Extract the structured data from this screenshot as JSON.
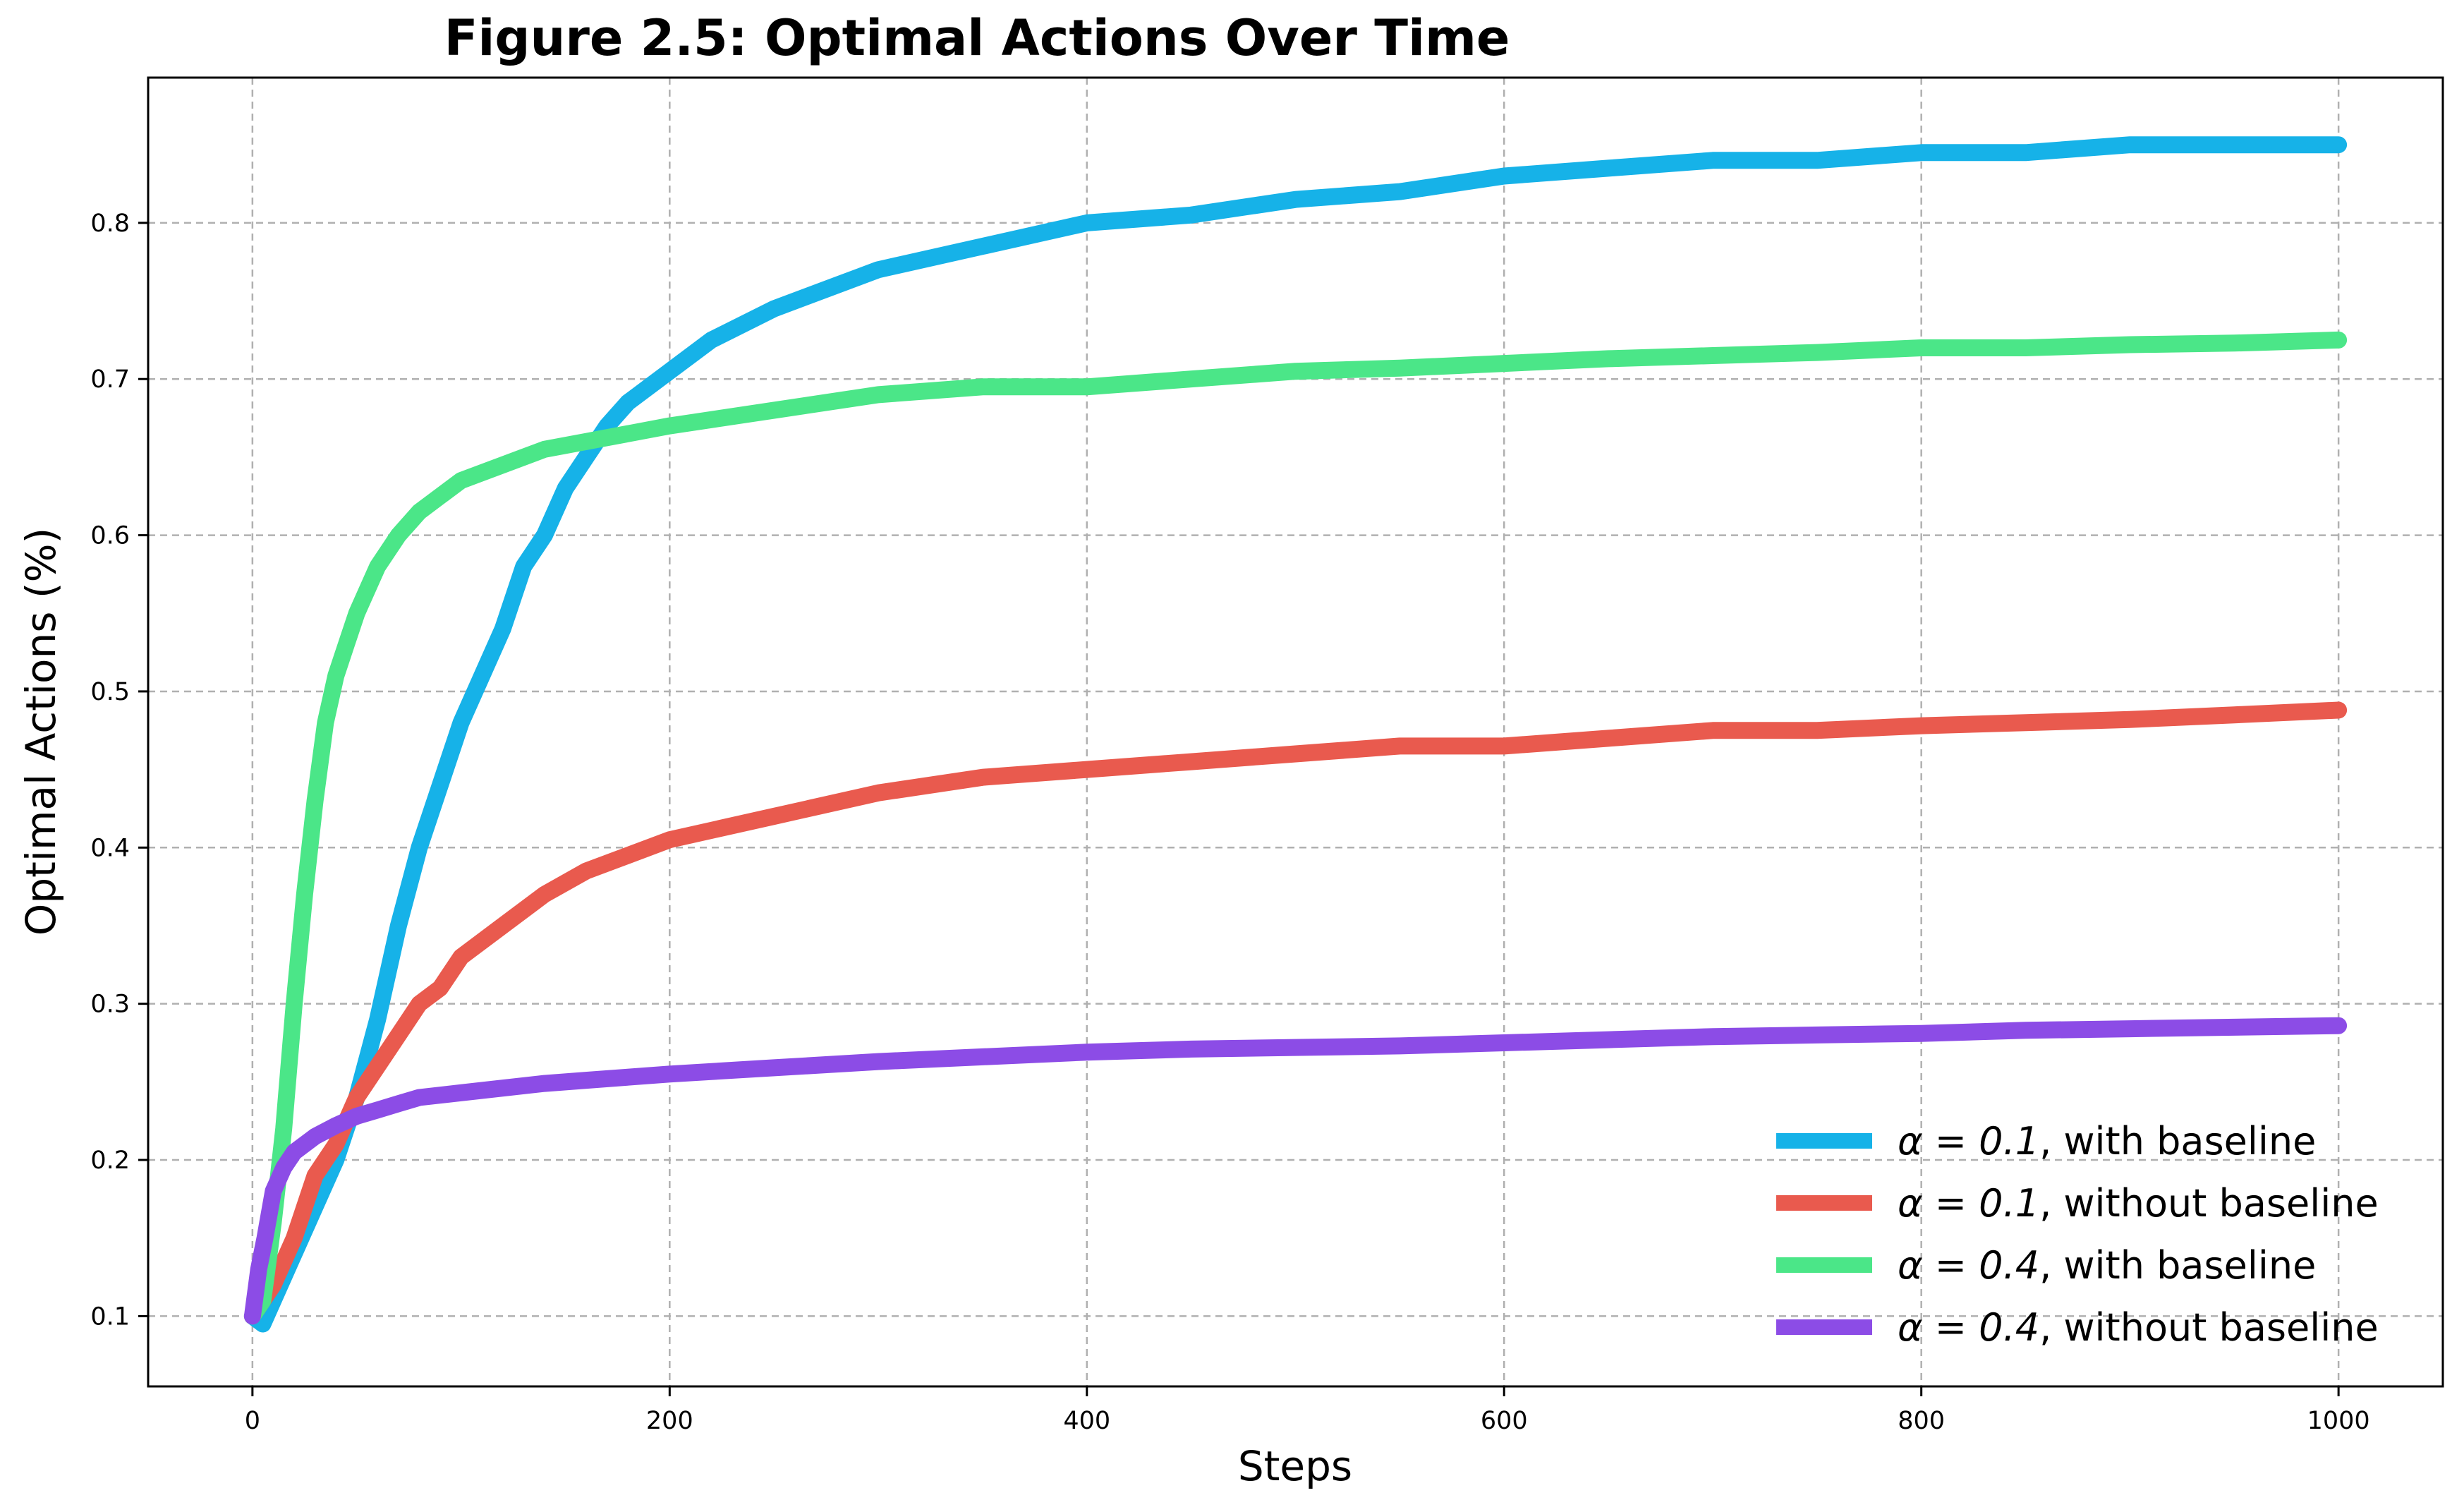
{
  "chart_data": {
    "type": "line",
    "title": "Figure 2.5: Optimal Actions Over Time",
    "xlabel": "Steps",
    "ylabel": "Optimal Actions (%)",
    "xlim": [
      -50,
      1050
    ],
    "ylim": [
      0.055,
      0.893
    ],
    "x_ticks": [
      0,
      200,
      400,
      600,
      800,
      1000
    ],
    "y_ticks": [
      0.1,
      0.2,
      0.3,
      0.4,
      0.5,
      0.6,
      0.7,
      0.8
    ],
    "grid": true,
    "legend_position": "lower-right",
    "series": [
      {
        "name": "α = 0.1, with baseline",
        "legend_prefix": "α = 0.1",
        "legend_suffix": ", with baseline",
        "color": "#16b2e8",
        "x": [
          0,
          5,
          10,
          20,
          30,
          40,
          50,
          60,
          70,
          80,
          90,
          100,
          110,
          120,
          130,
          140,
          150,
          160,
          170,
          180,
          200,
          220,
          250,
          280,
          300,
          350,
          400,
          450,
          500,
          550,
          600,
          650,
          700,
          750,
          800,
          850,
          900,
          950,
          1000
        ],
        "y": [
          0.1,
          0.095,
          0.11,
          0.14,
          0.17,
          0.2,
          0.24,
          0.29,
          0.35,
          0.4,
          0.44,
          0.48,
          0.51,
          0.54,
          0.58,
          0.6,
          0.63,
          0.65,
          0.67,
          0.685,
          0.705,
          0.725,
          0.745,
          0.76,
          0.77,
          0.785,
          0.8,
          0.805,
          0.815,
          0.82,
          0.83,
          0.835,
          0.84,
          0.84,
          0.845,
          0.845,
          0.85,
          0.85,
          0.85
        ]
      },
      {
        "name": "α = 0.1, without baseline",
        "legend_prefix": "α = 0.1",
        "legend_suffix": ", without baseline",
        "color": "#e95a4e",
        "x": [
          0,
          10,
          20,
          30,
          40,
          50,
          60,
          70,
          80,
          90,
          100,
          120,
          140,
          160,
          180,
          200,
          250,
          300,
          350,
          400,
          450,
          500,
          550,
          600,
          650,
          700,
          750,
          800,
          850,
          900,
          950,
          1000
        ],
        "y": [
          0.1,
          0.12,
          0.15,
          0.19,
          0.21,
          0.24,
          0.26,
          0.28,
          0.3,
          0.31,
          0.33,
          0.35,
          0.37,
          0.385,
          0.395,
          0.405,
          0.42,
          0.435,
          0.445,
          0.45,
          0.455,
          0.46,
          0.465,
          0.465,
          0.47,
          0.475,
          0.475,
          0.478,
          0.48,
          0.482,
          0.485,
          0.488
        ]
      },
      {
        "name": "α = 0.4, with baseline",
        "legend_prefix": "α = 0.4",
        "legend_suffix": ", with baseline",
        "color": "#4be688",
        "x": [
          0,
          5,
          10,
          15,
          20,
          25,
          30,
          35,
          40,
          45,
          50,
          60,
          70,
          80,
          90,
          100,
          120,
          140,
          160,
          180,
          200,
          250,
          300,
          350,
          400,
          450,
          500,
          550,
          600,
          650,
          700,
          750,
          800,
          850,
          900,
          950,
          1000
        ],
        "y": [
          0.1,
          0.11,
          0.16,
          0.22,
          0.3,
          0.37,
          0.43,
          0.48,
          0.51,
          0.53,
          0.55,
          0.58,
          0.6,
          0.615,
          0.625,
          0.635,
          0.645,
          0.655,
          0.66,
          0.665,
          0.67,
          0.68,
          0.69,
          0.695,
          0.695,
          0.7,
          0.705,
          0.707,
          0.71,
          0.713,
          0.715,
          0.717,
          0.72,
          0.72,
          0.722,
          0.723,
          0.725
        ]
      },
      {
        "name": "α = 0.4, without baseline",
        "legend_prefix": "α = 0.4",
        "legend_suffix": ", without baseline",
        "color": "#8c4ce6",
        "x": [
          0,
          3,
          6,
          10,
          15,
          20,
          30,
          40,
          50,
          60,
          70,
          80,
          100,
          120,
          140,
          160,
          180,
          200,
          250,
          300,
          350,
          400,
          450,
          500,
          550,
          600,
          650,
          700,
          750,
          800,
          850,
          900,
          950,
          1000
        ],
        "y": [
          0.1,
          0.13,
          0.15,
          0.18,
          0.195,
          0.205,
          0.215,
          0.222,
          0.228,
          0.232,
          0.236,
          0.24,
          0.243,
          0.246,
          0.249,
          0.251,
          0.253,
          0.255,
          0.259,
          0.263,
          0.266,
          0.269,
          0.271,
          0.272,
          0.273,
          0.275,
          0.277,
          0.279,
          0.28,
          0.281,
          0.283,
          0.284,
          0.285,
          0.286
        ]
      }
    ]
  }
}
